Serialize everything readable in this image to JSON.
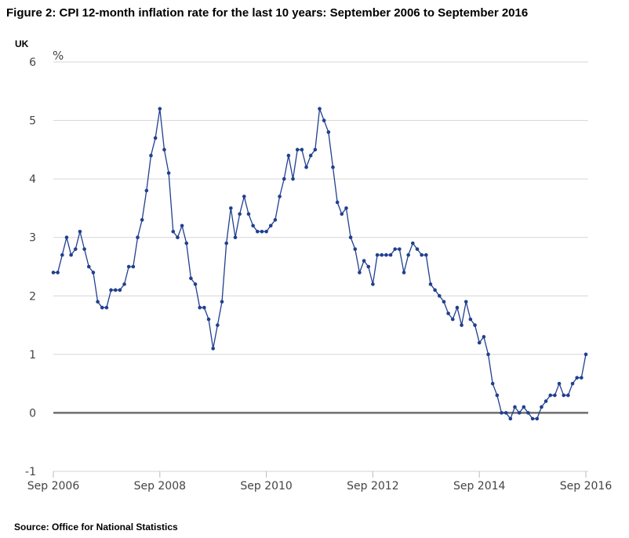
{
  "title": "Figure 2: CPI 12-month inflation rate for the last 10 years: September 2006 to September 2016",
  "region": "UK",
  "source": "Source: Office for National Statistics",
  "colors": {
    "line": "#203f8f",
    "grid": "#d6d6d6",
    "zero": "#6e6e6e",
    "text": "#444444"
  },
  "chart_data": {
    "type": "line",
    "title": "CPI 12-month inflation rate for the last 10 years: September 2006 to September 2016",
    "ylabel": "%",
    "xlabel": "",
    "ylim": [
      -1,
      6
    ],
    "yticks": [
      -1,
      0,
      1,
      2,
      3,
      4,
      5,
      6
    ],
    "xtick_labels": [
      "Sep 2006",
      "Sep 2008",
      "Sep 2010",
      "Sep 2012",
      "Sep 2014",
      "Sep 2016"
    ],
    "x_start": "Sep 2006",
    "x_end": "Sep 2016",
    "series": [
      {
        "name": "CPI 12-month inflation rate",
        "values": [
          2.4,
          2.4,
          2.7,
          3.0,
          2.7,
          2.8,
          3.1,
          2.8,
          2.5,
          2.4,
          1.9,
          1.8,
          1.8,
          2.1,
          2.1,
          2.1,
          2.2,
          2.5,
          2.5,
          3.0,
          3.3,
          3.8,
          4.4,
          4.7,
          5.2,
          4.5,
          4.1,
          3.1,
          3.0,
          3.2,
          2.9,
          2.3,
          2.2,
          1.8,
          1.8,
          1.6,
          1.1,
          1.5,
          1.9,
          2.9,
          3.5,
          3.0,
          3.4,
          3.7,
          3.4,
          3.2,
          3.1,
          3.1,
          3.1,
          3.2,
          3.3,
          3.7,
          4.0,
          4.4,
          4.0,
          4.5,
          4.5,
          4.2,
          4.4,
          4.5,
          5.2,
          5.0,
          4.8,
          4.2,
          3.6,
          3.4,
          3.5,
          3.0,
          2.8,
          2.4,
          2.6,
          2.5,
          2.2,
          2.7,
          2.7,
          2.7,
          2.7,
          2.8,
          2.8,
          2.4,
          2.7,
          2.9,
          2.8,
          2.7,
          2.7,
          2.2,
          2.1,
          2.0,
          1.9,
          1.7,
          1.6,
          1.8,
          1.5,
          1.9,
          1.6,
          1.5,
          1.2,
          1.3,
          1.0,
          0.5,
          0.3,
          0.0,
          0.0,
          -0.1,
          0.1,
          0.0,
          0.1,
          0.0,
          -0.1,
          -0.1,
          0.1,
          0.2,
          0.3,
          0.3,
          0.5,
          0.3,
          0.3,
          0.5,
          0.6,
          0.6,
          1.0
        ]
      }
    ]
  }
}
